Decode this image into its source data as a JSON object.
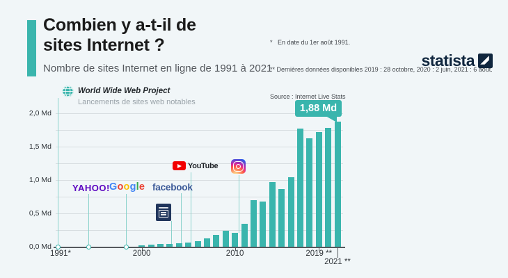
{
  "colors": {
    "accent_teal": "#3ab5ad",
    "connector_teal": "#8ad2cc",
    "brand_navy": "#10263e",
    "background": "#f1f6f8",
    "facebook_blue": "#3b5998",
    "yahoo_purple": "#5c04c0",
    "youtube_red": "#f20000"
  },
  "header": {
    "title_line1": "Combien y a-t-il de",
    "title_line2": "sites Internet ?",
    "subtitle": "Nombre de sites Internet en ligne de 1991 à 2021",
    "notes": [
      "*   En date du 1er août 1991.",
      "** Dernières données disponibles 2019 : 28 octobre, 2020 : 2 juin, 2021 : 6 août.",
      "Source : Internet Live Stats"
    ],
    "brand": "statista"
  },
  "chart_data": {
    "type": "bar",
    "title": "Nombre de sites Internet en ligne de 1991 à 2021",
    "ylabel": "",
    "xlabel": "",
    "unit": "Md (milliards de sites)",
    "x_range": [
      1991,
      2021
    ],
    "ylim": [
      0,
      2.0
    ],
    "minor_grid_step": 0.25,
    "grid": true,
    "bar_color": "#3ab5ad",
    "series": [
      {
        "name": "Sites Internet en ligne (Md)",
        "x": [
          2000,
          2001,
          2002,
          2003,
          2004,
          2005,
          2006,
          2007,
          2008,
          2009,
          2010,
          2011,
          2012,
          2013,
          2014,
          2015,
          2016,
          2017,
          2018,
          2019,
          2020,
          2021
        ],
        "values": [
          0.017,
          0.029,
          0.039,
          0.041,
          0.052,
          0.065,
          0.086,
          0.122,
          0.172,
          0.238,
          0.207,
          0.346,
          0.697,
          0.673,
          0.969,
          0.863,
          1.046,
          1.767,
          1.63,
          1.72,
          1.78,
          1.88
        ]
      }
    ],
    "yticks": [
      {
        "v": 0.0,
        "label": "0,0 Md"
      },
      {
        "v": 0.5,
        "label": "0,5 Md"
      },
      {
        "v": 1.0,
        "label": "1,0 Md"
      },
      {
        "v": 1.5,
        "label": "1,5 Md"
      },
      {
        "v": 2.0,
        "label": "2,0 Md"
      }
    ],
    "xticks": [
      {
        "year": 1991,
        "label": "1991*"
      },
      {
        "year": 2000,
        "label": "2000"
      },
      {
        "year": 2010,
        "label": "2010"
      },
      {
        "year": 2019,
        "label": "2019 **"
      },
      {
        "year": 2021,
        "label": "2021 **"
      }
    ],
    "callout": {
      "text": "1,88 Md",
      "year": 2021
    },
    "annotations": [
      {
        "id": "www",
        "year": 1991,
        "label": "World Wide Web Project",
        "sublabel": "Lancements de sites web notables",
        "icon": "globe-icon"
      },
      {
        "id": "yahoo",
        "year": 1994,
        "wordmark": "YAHOO!",
        "icon": "yahoo-wordmark"
      },
      {
        "id": "google",
        "year": 1998,
        "wordmark": "Google",
        "icon": "google-wordmark",
        "letter_colors": [
          "#4285F4",
          "#EA4335",
          "#FBBC05",
          "#4285F4",
          "#34A853",
          "#EA4335"
        ]
      },
      {
        "id": "dark-site",
        "year": 2003,
        "wordmark": "",
        "icon": "dark-square-logo"
      },
      {
        "id": "facebook",
        "year": 2004,
        "wordmark": "facebook",
        "icon": "facebook-wordmark"
      },
      {
        "id": "youtube",
        "year": 2005,
        "wordmark": "YouTube",
        "icon": "youtube-play-icon"
      },
      {
        "id": "instagram",
        "year": 2010,
        "wordmark": "",
        "icon": "instagram-icon"
      }
    ]
  }
}
